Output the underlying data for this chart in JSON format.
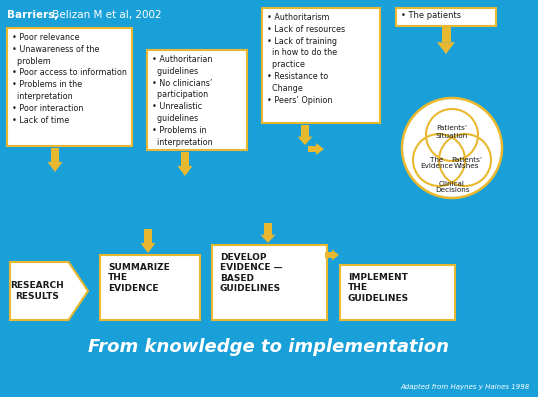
{
  "bg_color": "#1aa0d8",
  "box_edge_color": "#e8b830",
  "arrow_color": "#e8b830",
  "title_bold": "Barriers,",
  "title_normal": " Belizan M et al, 2002",
  "box1_text": "• Poor relevance\n• Unawareness of the\n  problem\n• Poor access to information\n• Problems in the\n  interpretation\n• Poor interaction\n• Lack of time",
  "box2_text": "• Authoritarian\n  guidelines\n• No clinicians’\n  participation\n• Unrealistic\n  guidelines\n• Problems in\n  interpretation",
  "box3_text": "• Authoritarism\n• Lack of resources\n• Lack of training\n  in how to do the\n  practice\n• Resistance to\n  Change\n• Peers’ Opinion",
  "box_patients_text": "• The patients",
  "circle_label1": "Patients’\nSituation",
  "circle_label2": "The\nEvidence",
  "circle_label3": "Patients’\nWishes",
  "circle_label4": "Clinical\nDecisions",
  "step1_text": "RESEARCH\nRESULTS",
  "step2_text": "SUMMARIZE\nTHE\nEVIDENCE",
  "step3_text": "DEVELOP\nEVIDENCE —\nBASED\nGUIDELINES",
  "step4_text": "IMPLEMENT\nTHE\nGUIDELINES",
  "bottom_title": "From knowledge to implementation",
  "credit_text": "Adapted from Haynes y Haines 1998",
  "white": "#ffffff",
  "dark": "#1a1a1a",
  "yellow": "#e8b830"
}
